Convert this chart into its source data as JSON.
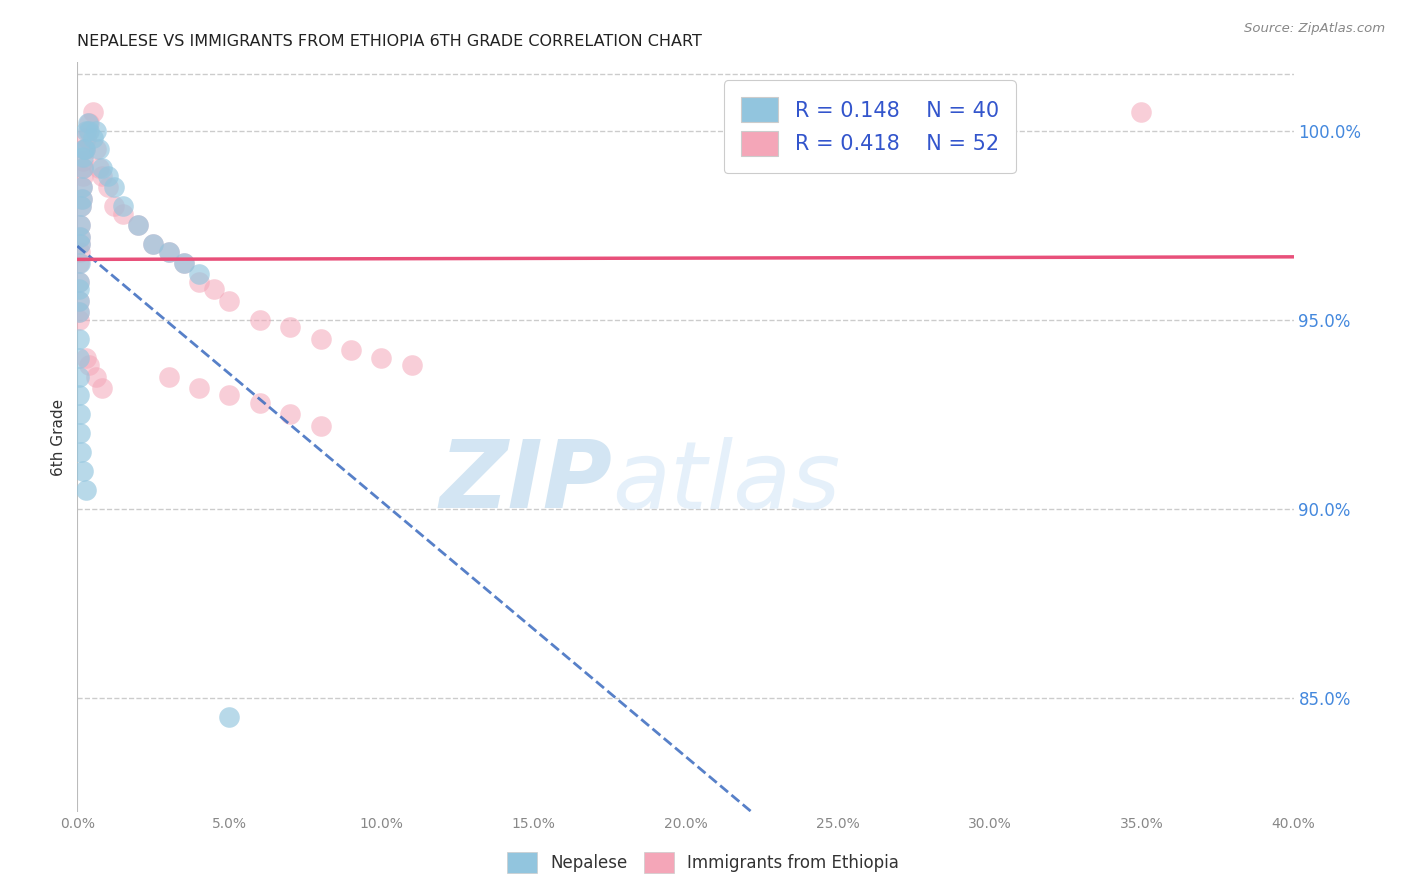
{
  "title": "NEPALESE VS IMMIGRANTS FROM ETHIOPIA 6TH GRADE CORRELATION CHART",
  "source": "Source: ZipAtlas.com",
  "ylabel": "6th Grade",
  "x_min": 0.0,
  "x_max": 40.0,
  "y_min": 82.0,
  "y_max": 101.8,
  "y_ticks": [
    85.0,
    90.0,
    95.0,
    100.0
  ],
  "y_tick_labels": [
    "85.0%",
    "90.0%",
    "95.0%",
    "100.0%"
  ],
  "legend_R1": "R = 0.148",
  "legend_N1": "N = 40",
  "legend_R2": "R = 0.418",
  "legend_N2": "N = 52",
  "blue_color": "#92c5de",
  "pink_color": "#f4a6b8",
  "blue_line_color": "#3a6abf",
  "pink_line_color": "#e8507a",
  "legend_text_color": "#3355cc",
  "nepalese_x": [
    0.05,
    0.05,
    0.05,
    0.05,
    0.08,
    0.08,
    0.1,
    0.1,
    0.12,
    0.15,
    0.15,
    0.18,
    0.2,
    0.22,
    0.25,
    0.3,
    0.35,
    0.4,
    0.5,
    0.6,
    0.7,
    0.8,
    1.0,
    1.2,
    1.5,
    2.0,
    2.5,
    3.0,
    3.5,
    4.0,
    0.05,
    0.05,
    0.06,
    0.07,
    0.09,
    0.1,
    0.12,
    0.2,
    0.3,
    5.0
  ],
  "nepalese_y": [
    95.5,
    95.8,
    95.2,
    96.0,
    96.5,
    97.0,
    97.2,
    97.5,
    98.0,
    98.5,
    98.2,
    99.0,
    99.3,
    99.5,
    99.5,
    100.0,
    100.2,
    100.0,
    99.8,
    100.0,
    99.5,
    99.0,
    98.8,
    98.5,
    98.0,
    97.5,
    97.0,
    96.8,
    96.5,
    96.2,
    94.5,
    94.0,
    93.5,
    93.0,
    92.5,
    92.0,
    91.5,
    91.0,
    90.5,
    84.5
  ],
  "ethiopia_x": [
    0.05,
    0.05,
    0.05,
    0.05,
    0.05,
    0.08,
    0.08,
    0.1,
    0.1,
    0.12,
    0.15,
    0.15,
    0.18,
    0.2,
    0.2,
    0.22,
    0.25,
    0.3,
    0.35,
    0.4,
    0.5,
    0.6,
    0.7,
    0.8,
    1.0,
    1.2,
    1.5,
    2.0,
    2.5,
    3.0,
    3.5,
    4.0,
    4.5,
    5.0,
    6.0,
    7.0,
    8.0,
    9.0,
    10.0,
    11.0,
    3.0,
    4.0,
    5.0,
    6.0,
    7.0,
    8.0,
    30.0,
    35.0,
    0.3,
    0.4,
    0.6,
    0.8
  ],
  "ethiopia_y": [
    95.0,
    95.5,
    96.0,
    96.5,
    95.2,
    96.8,
    97.0,
    97.5,
    97.2,
    98.0,
    98.2,
    98.5,
    99.0,
    99.2,
    98.8,
    99.5,
    99.5,
    99.8,
    100.0,
    100.2,
    100.5,
    99.5,
    99.0,
    98.8,
    98.5,
    98.0,
    97.8,
    97.5,
    97.0,
    96.8,
    96.5,
    96.0,
    95.8,
    95.5,
    95.0,
    94.8,
    94.5,
    94.2,
    94.0,
    93.8,
    93.5,
    93.2,
    93.0,
    92.8,
    92.5,
    92.2,
    100.2,
    100.5,
    94.0,
    93.8,
    93.5,
    93.2
  ],
  "watermark_zip": "ZIP",
  "watermark_atlas": "atlas",
  "background_color": "#ffffff",
  "grid_color": "#cccccc"
}
